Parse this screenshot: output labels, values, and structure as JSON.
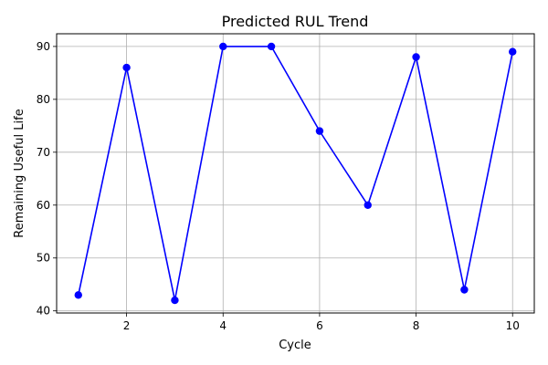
{
  "chart_data": {
    "type": "line",
    "title": "Predicted RUL Trend",
    "xlabel": "Cycle",
    "ylabel": "Remaining Useful Life",
    "x": [
      1,
      2,
      3,
      4,
      5,
      6,
      7,
      8,
      9,
      10
    ],
    "series": [
      {
        "values": [
          43,
          86,
          42,
          90,
          90,
          74,
          60,
          88,
          44,
          89
        ],
        "color": "#0000ff"
      }
    ],
    "xticks": [
      2,
      4,
      6,
      8,
      10
    ],
    "yticks": [
      40,
      50,
      60,
      70,
      80,
      90
    ],
    "xlim": [
      0.55,
      10.45
    ],
    "ylim": [
      39.6,
      92.4
    ],
    "grid": true,
    "marker": "circle"
  }
}
